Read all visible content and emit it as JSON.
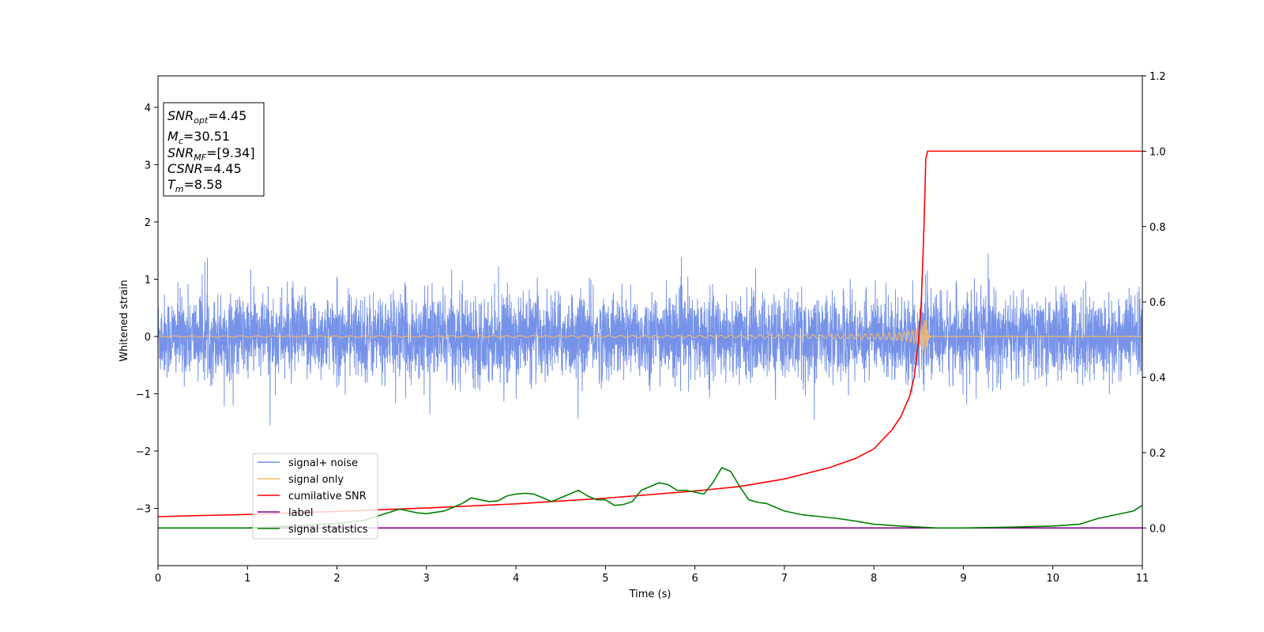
{
  "chart_data": {
    "type": "line",
    "xlabel": "Time (s)",
    "ylabel": "Whitened strain",
    "xlim": [
      0,
      11
    ],
    "ylim_left": [
      -4,
      4.55
    ],
    "ylim_right": [
      -0.1,
      1.2
    ],
    "x_ticks": [
      "0",
      "1",
      "2",
      "3",
      "4",
      "5",
      "6",
      "7",
      "8",
      "9",
      "10",
      "11"
    ],
    "left_ticks": [
      "−3",
      "−2",
      "−1",
      "0",
      "1",
      "2",
      "3",
      "4"
    ],
    "right_ticks": [
      "0.0",
      "0.2",
      "0.4",
      "0.6",
      "0.8",
      "1.0",
      "1.2"
    ],
    "grid": false,
    "legend_position": "lower-left",
    "info_box": {
      "snr_opt": {
        "base": "SNR",
        "sub": "opt",
        "value": "=4.45"
      },
      "mc": {
        "base": "M",
        "sub": "c",
        "value": "=30.51"
      },
      "snr_mf": {
        "base": "SNR",
        "sub": "MF",
        "value": "=[9.34]"
      },
      "csnr": {
        "base": "CSNR",
        "value": "=4.45"
      },
      "tm": {
        "base": "T",
        "sub": "m",
        "value": "=8.58"
      }
    },
    "series": [
      {
        "name": "signal+ noise",
        "axis": "left",
        "color": "#6f8de8",
        "description_range": [
          -1.55,
          1.85
        ]
      },
      {
        "name": "signal only",
        "axis": "left",
        "color": "#f5b96a",
        "merger_time": 8.58,
        "peak_amplitude": 0.38
      },
      {
        "name": "cumilative SNR",
        "axis": "right",
        "color": "#ff0000",
        "x": [
          0,
          1,
          2,
          3,
          4,
          5,
          6,
          6.5,
          7,
          7.5,
          7.8,
          8.0,
          8.2,
          8.3,
          8.4,
          8.45,
          8.5,
          8.53,
          8.56,
          8.58,
          8.6,
          11
        ],
        "y": [
          0.03,
          0.036,
          0.044,
          0.053,
          0.064,
          0.079,
          0.098,
          0.11,
          0.13,
          0.16,
          0.185,
          0.21,
          0.26,
          0.295,
          0.35,
          0.4,
          0.5,
          0.6,
          0.8,
          0.98,
          1.0,
          1.0
        ]
      },
      {
        "name": "label",
        "axis": "right",
        "color": "#800080",
        "x": [
          0,
          11
        ],
        "y": [
          0,
          0
        ]
      },
      {
        "name": "signal statistics",
        "axis": "right",
        "color": "#008000",
        "x": [
          0,
          0.5,
          1.0,
          1.5,
          2.0,
          2.3,
          2.5,
          2.7,
          2.9,
          3.0,
          3.2,
          3.4,
          3.5,
          3.6,
          3.7,
          3.8,
          3.9,
          4.0,
          4.1,
          4.2,
          4.3,
          4.4,
          4.5,
          4.6,
          4.7,
          4.8,
          4.9,
          5.0,
          5.1,
          5.2,
          5.3,
          5.4,
          5.5,
          5.6,
          5.7,
          5.8,
          5.9,
          6.0,
          6.1,
          6.2,
          6.3,
          6.4,
          6.5,
          6.6,
          6.7,
          6.8,
          6.9,
          7.0,
          7.2,
          7.4,
          7.6,
          7.8,
          8.0,
          8.3,
          8.7,
          9.0,
          9.5,
          10.0,
          10.3,
          10.5,
          10.7,
          10.9,
          11.0
        ],
        "y": [
          0.0,
          0.0,
          0.0,
          0.005,
          0.012,
          0.02,
          0.035,
          0.05,
          0.04,
          0.038,
          0.045,
          0.065,
          0.08,
          0.075,
          0.07,
          0.072,
          0.085,
          0.09,
          0.092,
          0.09,
          0.08,
          0.07,
          0.08,
          0.09,
          0.1,
          0.085,
          0.075,
          0.075,
          0.06,
          0.062,
          0.07,
          0.1,
          0.11,
          0.12,
          0.115,
          0.1,
          0.1,
          0.095,
          0.09,
          0.12,
          0.16,
          0.15,
          0.11,
          0.075,
          0.068,
          0.065,
          0.055,
          0.045,
          0.035,
          0.03,
          0.025,
          0.018,
          0.01,
          0.005,
          0.0,
          0.0,
          0.002,
          0.005,
          0.01,
          0.025,
          0.035,
          0.045,
          0.06
        ]
      }
    ]
  }
}
